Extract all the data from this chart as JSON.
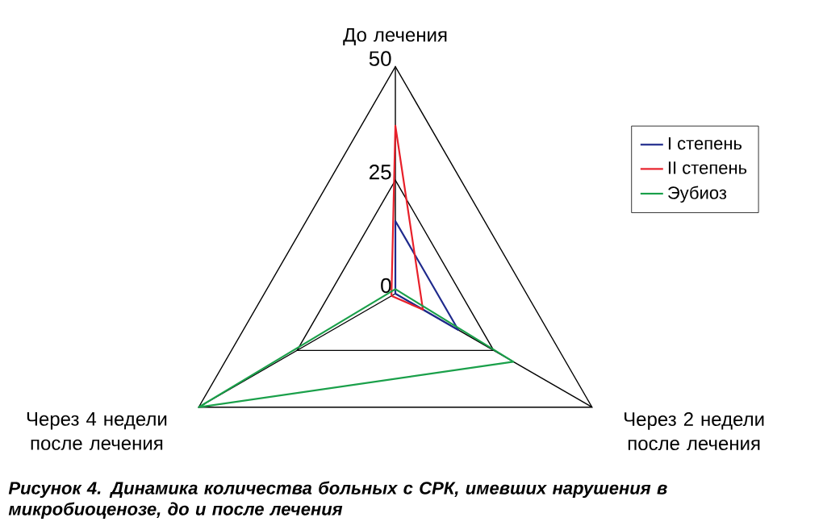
{
  "chart_data": {
    "type": "radar",
    "categories": [
      "До лечения",
      "Через 2 недели после лечения",
      "Через 4 недели после лечения"
    ],
    "series": [
      {
        "name": "I степень",
        "color": "#1f2a8c",
        "values": [
          16,
          16,
          0
        ]
      },
      {
        "name": "II степень",
        "color": "#e8202a",
        "values": [
          37,
          7,
          1
        ]
      },
      {
        "name": "Эубиоз",
        "color": "#1aa04a",
        "values": [
          1,
          30,
          50
        ]
      }
    ],
    "ylim": [
      0,
      50
    ],
    "yticks": [
      0,
      25,
      50
    ],
    "grid": true,
    "legend": "top right",
    "annotations": [
      "Рисунок 4. Динамика количества больных с СРК, имевших нарушения в микробиоценозе, до и после лечения"
    ]
  }
}
